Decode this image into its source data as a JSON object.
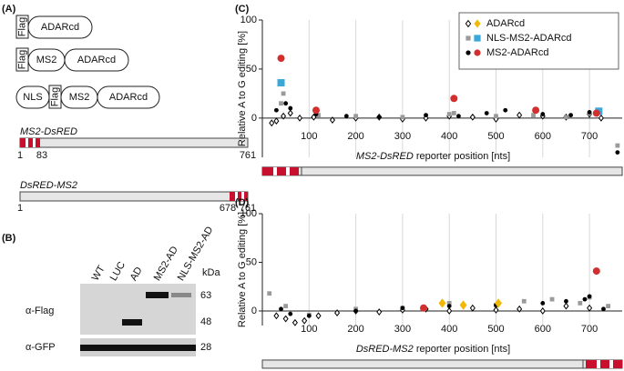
{
  "panel_a": {
    "label": "(A)",
    "constructs": [
      [
        "Flag",
        "ADARcd"
      ],
      [
        "Flag",
        "MS2",
        "ADARcd"
      ],
      [
        "NLS",
        "Flag",
        "MS2",
        "ADARcd"
      ]
    ],
    "reporters": [
      {
        "name": "MS2-DsRED",
        "positions": [
          "1",
          "83",
          "761"
        ]
      },
      {
        "name": "DsRED-MS2",
        "positions": [
          "1",
          "678",
          "761"
        ]
      }
    ]
  },
  "panel_b": {
    "label": "(B)",
    "lanes": [
      "WT",
      "LUC",
      "AD",
      "MS2-AD",
      "NLS-MS2-AD"
    ],
    "unit": "kDa",
    "markers": [
      "63",
      "48",
      "28"
    ],
    "antibodies": [
      "α-Flag",
      "α-GFP"
    ]
  },
  "chart_data": [
    {
      "type": "scatter",
      "panel_label": "(C)",
      "ylabel": "Relative A to G editing [%]",
      "xlabel_italic": "MS2-DsRED",
      "xlabel": "reporter position  [nts]",
      "xlim": [
        0,
        770
      ],
      "ylim": [
        -40,
        100
      ],
      "xticks": [
        100,
        200,
        300,
        400,
        500,
        600,
        700
      ],
      "yticks": [
        0,
        50,
        100
      ],
      "grid": true,
      "legend": "upper right",
      "series": [
        {
          "name": "ADARcd",
          "marker": "diamond",
          "hollow": true,
          "color": "#000000",
          "sig_color": "#f2b807",
          "x": [
            20,
            30,
            45,
            60,
            80,
            110,
            150,
            200,
            250,
            300,
            350,
            400,
            450,
            500,
            550,
            600,
            650,
            700,
            725
          ],
          "values": [
            -5,
            -3,
            2,
            5,
            0,
            1,
            -2,
            0,
            1,
            -1,
            0,
            2,
            1,
            -1,
            3,
            2,
            1,
            4,
            0
          ],
          "sig_x": [],
          "sig_values": []
        },
        {
          "name": "NLS-MS2-ADARcd",
          "marker": "square",
          "hollow": false,
          "color": "#9a9a9a",
          "sig_color": "#3aa8d8",
          "x": [
            40,
            45,
            120,
            200,
            300,
            400,
            410,
            500,
            580,
            650,
            700,
            760
          ],
          "values": [
            15,
            25,
            3,
            2,
            1,
            4,
            5,
            2,
            3,
            1,
            5,
            -28
          ],
          "sig_x": [
            40,
            720
          ],
          "sig_values": [
            36,
            7
          ]
        },
        {
          "name": "MS2-ADARcd",
          "marker": "circle",
          "hollow": false,
          "color": "#000000",
          "sig_color": "#d32f2f",
          "x": [
            30,
            50,
            60,
            115,
            180,
            250,
            350,
            420,
            480,
            520,
            600,
            660,
            700,
            760
          ],
          "values": [
            8,
            15,
            10,
            4,
            2,
            1,
            3,
            2,
            5,
            8,
            4,
            3,
            6,
            -35
          ],
          "sig_x": [
            40,
            115,
            410,
            585,
            715
          ],
          "sig_values": [
            61,
            8,
            20,
            8,
            5
          ]
        }
      ]
    },
    {
      "type": "scatter",
      "panel_label": "(D)",
      "ylabel": "Relative A to G editing [%]",
      "xlabel_italic": "DsRED-MS2",
      "xlabel": "reporter position [nts]",
      "xlim": [
        0,
        770
      ],
      "ylim": [
        -15,
        100
      ],
      "xticks": [
        100,
        200,
        300,
        400,
        500,
        600,
        700
      ],
      "yticks": [
        0,
        50,
        100
      ],
      "grid": true,
      "series": [
        {
          "marker": "diamond",
          "hollow": true,
          "color": "#000000",
          "sig_color": "#f2b807",
          "x": [
            30,
            50,
            70,
            90,
            120,
            160,
            200,
            250,
            300,
            350,
            400,
            450,
            500,
            550,
            600,
            650,
            700
          ],
          "values": [
            -5,
            -8,
            -12,
            -10,
            -5,
            -2,
            0,
            -1,
            1,
            2,
            0,
            3,
            1,
            2,
            0,
            5,
            3
          ],
          "sig_x": [
            385,
            430,
            505
          ],
          "sig_values": [
            8,
            6,
            8
          ]
        },
        {
          "marker": "square",
          "hollow": false,
          "color": "#9a9a9a",
          "sig_color": "#3aa8d8",
          "x": [
            15,
            50,
            100,
            200,
            300,
            400,
            500,
            560,
            620,
            680,
            700,
            740
          ],
          "values": [
            18,
            5,
            -4,
            2,
            3,
            8,
            6,
            10,
            12,
            8,
            14,
            5
          ],
          "sig_x": [],
          "sig_values": []
        },
        {
          "marker": "circle",
          "hollow": false,
          "color": "#000000",
          "sig_color": "#d32f2f",
          "x": [
            40,
            60,
            100,
            200,
            300,
            400,
            500,
            600,
            650,
            690,
            700,
            730
          ],
          "values": [
            2,
            -3,
            -5,
            0,
            3,
            5,
            6,
            8,
            10,
            12,
            15,
            2
          ],
          "sig_x": [
            345,
            715
          ],
          "sig_values": [
            3,
            41
          ]
        }
      ]
    }
  ]
}
